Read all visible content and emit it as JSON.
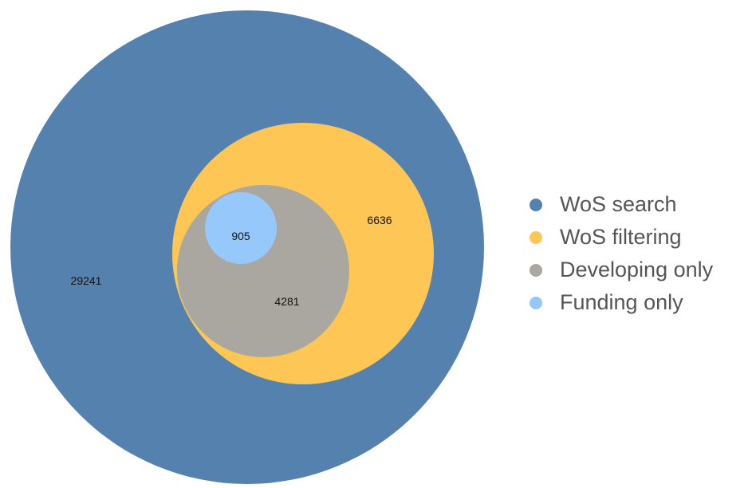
{
  "chart_data": {
    "type": "nested-venn",
    "sets": [
      {
        "name": "WoS search",
        "count": "29241",
        "color": "#5581ae"
      },
      {
        "name": "WoS filtering",
        "count": "6636",
        "color": "#fdc655"
      },
      {
        "name": "Developing only",
        "count": "4281",
        "color": "#a9a7a0"
      },
      {
        "name": "Funding only",
        "count": "905",
        "color": "#97c8fb"
      }
    ],
    "legend_position": "right"
  },
  "legend": {
    "items": [
      {
        "label": "WoS search",
        "color": "#5581ae"
      },
      {
        "label": "WoS filtering",
        "color": "#fdc655"
      },
      {
        "label": "Developing only",
        "color": "#a9a7a0"
      },
      {
        "label": "Funding only",
        "color": "#97c8fb"
      }
    ]
  }
}
